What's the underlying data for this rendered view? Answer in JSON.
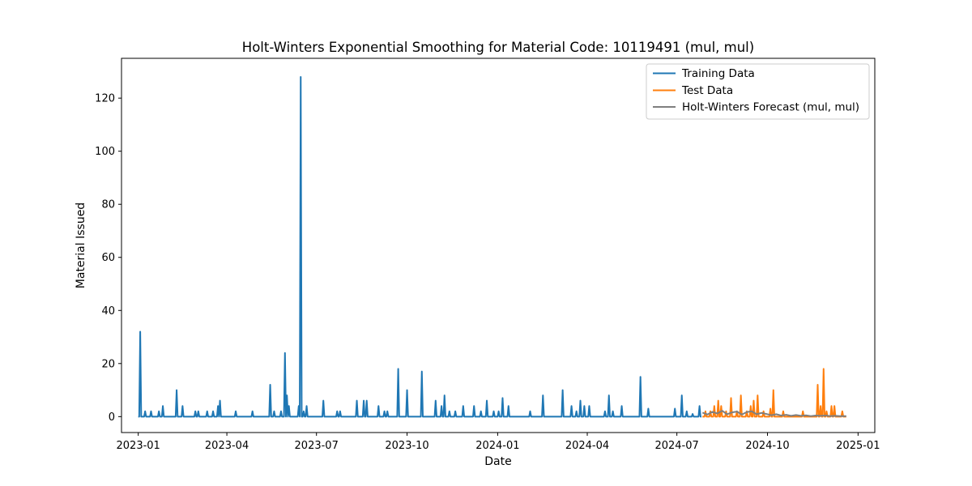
{
  "chart_data": {
    "type": "line",
    "title": "Holt-Winters Exponential Smoothing for Material Code: 10119491 (mul, mul)",
    "xlabel": "Date",
    "ylabel": "Material Issued",
    "xlim": [
      "2022-12-15",
      "2025-01-18"
    ],
    "ylim": [
      -6,
      135
    ],
    "x_ticks": [
      "2023-01-01",
      "2023-04-01",
      "2023-07-01",
      "2023-10-01",
      "2024-01-01",
      "2024-04-01",
      "2024-07-01",
      "2024-10-01",
      "2025-01-01"
    ],
    "x_tick_labels": [
      "2023-01",
      "2023-04",
      "2023-07",
      "2023-10",
      "2024-01",
      "2024-04",
      "2024-07",
      "2024-10",
      "2025-01"
    ],
    "y_ticks": [
      0,
      20,
      40,
      60,
      80,
      100,
      120
    ],
    "y_tick_labels": [
      "0",
      "20",
      "40",
      "60",
      "80",
      "100",
      "120"
    ],
    "grid": false,
    "legend_position": "top-right",
    "series": [
      {
        "name": "Training Data",
        "color": "#1f77b4",
        "baseline": 0,
        "start": "2023-01-01",
        "end": "2024-07-26",
        "spikes": [
          [
            "2023-01-03",
            32
          ],
          [
            "2023-01-08",
            2
          ],
          [
            "2023-01-14",
            2
          ],
          [
            "2023-01-22",
            2
          ],
          [
            "2023-01-26",
            4
          ],
          [
            "2023-02-09",
            10
          ],
          [
            "2023-02-15",
            4
          ],
          [
            "2023-02-28",
            2
          ],
          [
            "2023-03-03",
            2
          ],
          [
            "2023-03-12",
            2
          ],
          [
            "2023-03-18",
            2
          ],
          [
            "2023-03-23",
            4
          ],
          [
            "2023-03-25",
            6
          ],
          [
            "2023-04-10",
            2
          ],
          [
            "2023-04-27",
            2
          ],
          [
            "2023-05-15",
            12
          ],
          [
            "2023-05-19",
            2
          ],
          [
            "2023-05-26",
            2
          ],
          [
            "2023-05-30",
            24
          ],
          [
            "2023-06-01",
            8
          ],
          [
            "2023-06-03",
            4
          ],
          [
            "2023-06-13",
            4
          ],
          [
            "2023-06-15",
            128
          ],
          [
            "2023-06-18",
            2
          ],
          [
            "2023-06-21",
            4
          ],
          [
            "2023-07-08",
            6
          ],
          [
            "2023-07-22",
            2
          ],
          [
            "2023-07-25",
            2
          ],
          [
            "2023-08-11",
            6
          ],
          [
            "2023-08-18",
            6
          ],
          [
            "2023-08-21",
            6
          ],
          [
            "2023-09-02",
            4
          ],
          [
            "2023-09-08",
            2
          ],
          [
            "2023-09-11",
            2
          ],
          [
            "2023-09-22",
            18
          ],
          [
            "2023-10-01",
            10
          ],
          [
            "2023-10-16",
            17
          ],
          [
            "2023-10-30",
            6
          ],
          [
            "2023-11-05",
            4
          ],
          [
            "2023-11-08",
            8
          ],
          [
            "2023-11-13",
            2
          ],
          [
            "2023-11-19",
            2
          ],
          [
            "2023-11-27",
            4
          ],
          [
            "2023-12-08",
            4
          ],
          [
            "2023-12-15",
            2
          ],
          [
            "2023-12-21",
            6
          ],
          [
            "2023-12-28",
            2
          ],
          [
            "2024-01-02",
            2
          ],
          [
            "2024-01-06",
            7
          ],
          [
            "2024-01-12",
            4
          ],
          [
            "2024-02-03",
            2
          ],
          [
            "2024-02-16",
            8
          ],
          [
            "2024-03-07",
            10
          ],
          [
            "2024-03-16",
            4
          ],
          [
            "2024-03-21",
            2
          ],
          [
            "2024-03-25",
            6
          ],
          [
            "2024-03-29",
            4
          ],
          [
            "2024-04-03",
            4
          ],
          [
            "2024-04-19",
            2
          ],
          [
            "2024-04-23",
            8
          ],
          [
            "2024-04-27",
            2
          ],
          [
            "2024-05-06",
            4
          ],
          [
            "2024-05-25",
            15
          ],
          [
            "2024-06-02",
            3
          ],
          [
            "2024-06-29",
            3
          ],
          [
            "2024-07-06",
            8
          ],
          [
            "2024-07-11",
            2
          ],
          [
            "2024-07-17",
            1
          ],
          [
            "2024-07-24",
            4
          ]
        ]
      },
      {
        "name": "Test Data",
        "color": "#ff7f0e",
        "baseline": 0,
        "start": "2024-07-27",
        "end": "2024-12-20",
        "spikes": [
          [
            "2024-07-30",
            2
          ],
          [
            "2024-08-04",
            2
          ],
          [
            "2024-08-08",
            4
          ],
          [
            "2024-08-12",
            6
          ],
          [
            "2024-08-15",
            4
          ],
          [
            "2024-08-20",
            2
          ],
          [
            "2024-08-25",
            7
          ],
          [
            "2024-08-31",
            2
          ],
          [
            "2024-09-04",
            8
          ],
          [
            "2024-09-10",
            2
          ],
          [
            "2024-09-14",
            4
          ],
          [
            "2024-09-17",
            6
          ],
          [
            "2024-09-21",
            8
          ],
          [
            "2024-09-27",
            2
          ],
          [
            "2024-10-04",
            3
          ],
          [
            "2024-10-07",
            10
          ],
          [
            "2024-10-17",
            2
          ],
          [
            "2024-11-06",
            2
          ],
          [
            "2024-11-21",
            12
          ],
          [
            "2024-11-24",
            4
          ],
          [
            "2024-11-27",
            18
          ],
          [
            "2024-11-30",
            2
          ],
          [
            "2024-12-05",
            4
          ],
          [
            "2024-12-08",
            4
          ],
          [
            "2024-12-16",
            2
          ]
        ]
      },
      {
        "name": "Holt-Winters Forecast (mul, mul)",
        "color": "#7f7f7f",
        "points": [
          [
            "2024-07-27",
            1.5
          ],
          [
            "2024-08-01",
            0.8
          ],
          [
            "2024-08-06",
            1.8
          ],
          [
            "2024-08-11",
            1.2
          ],
          [
            "2024-08-16",
            2.2
          ],
          [
            "2024-08-21",
            0.9
          ],
          [
            "2024-08-26",
            1.6
          ],
          [
            "2024-08-31",
            1.9
          ],
          [
            "2024-09-05",
            0.8
          ],
          [
            "2024-09-10",
            1.7
          ],
          [
            "2024-09-15",
            2.0
          ],
          [
            "2024-09-20",
            0.9
          ],
          [
            "2024-09-25",
            1.4
          ],
          [
            "2024-09-30",
            1.0
          ],
          [
            "2024-10-05",
            0.5
          ],
          [
            "2024-10-10",
            0.9
          ],
          [
            "2024-10-15",
            0.4
          ],
          [
            "2024-10-20",
            0.7
          ],
          [
            "2024-10-25",
            0.3
          ],
          [
            "2024-10-30",
            0.6
          ],
          [
            "2024-11-04",
            0.3
          ],
          [
            "2024-11-09",
            0.5
          ],
          [
            "2024-11-14",
            0.2
          ],
          [
            "2024-11-19",
            0.4
          ],
          [
            "2024-11-24",
            0.3
          ],
          [
            "2024-11-29",
            0.4
          ],
          [
            "2024-12-04",
            0.2
          ],
          [
            "2024-12-09",
            0.3
          ],
          [
            "2024-12-14",
            0.2
          ],
          [
            "2024-12-20",
            0.2
          ]
        ]
      }
    ]
  }
}
